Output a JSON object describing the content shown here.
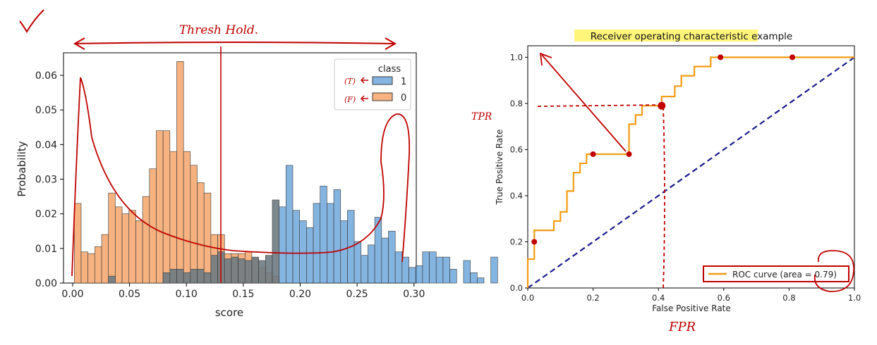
{
  "hist_colors": {
    "class_1": "#5b9bd5",
    "class_0": "#f4a56a",
    "overlap": "#6e7a82",
    "edge": "#3a3a3a"
  },
  "annotation_color": "#c00000",
  "chart_data": [
    {
      "type": "histogram",
      "xlabel": "score",
      "ylabel": "Probability",
      "xlim": [
        -0.008,
        0.302
      ],
      "ylim": [
        0,
        0.0665
      ],
      "xticks": [
        0.0,
        0.05,
        0.1,
        0.15,
        0.2,
        0.25,
        0.3
      ],
      "xtick_labels": [
        "0.00",
        "0.05",
        "0.10",
        "0.15",
        "0.20",
        "0.25",
        "0.30"
      ],
      "yticks": [
        0,
        0.01,
        0.02,
        0.03,
        0.04,
        0.05,
        0.06
      ],
      "ytick_labels": [
        "0.00",
        "0.01",
        "0.02",
        "0.03",
        "0.04",
        "0.05",
        "0.06"
      ],
      "legend": {
        "title": "class",
        "entries": [
          "1",
          "0"
        ],
        "placement": "top-right"
      },
      "bin_start": 0.0015,
      "bin_width": 0.006,
      "series": [
        {
          "name": "0",
          "values": [
            0.023,
            0.009,
            0.0085,
            0.0105,
            0.014,
            0.026,
            0.022,
            0.02,
            0.021,
            0.018,
            0.025,
            0.033,
            0.044,
            0.044,
            0.038,
            0.064,
            0.038,
            0.034,
            0.029,
            0.026,
            0.014,
            0.014,
            0.0085,
            0.0085,
            0.0085,
            0.009,
            0.007,
            0.0045,
            0.003,
            0.002,
            0,
            0,
            0,
            0,
            0,
            0,
            0,
            0,
            0,
            0,
            0,
            0,
            0,
            0,
            0,
            0,
            0,
            0
          ]
        },
        {
          "name": "1",
          "values": [
            0,
            0,
            0,
            0,
            0,
            0.002,
            0,
            0,
            0,
            0,
            0,
            0,
            0,
            0.003,
            0.004,
            0.004,
            0.003,
            0.004,
            0.004,
            0.003,
            0.008,
            0.009,
            0.007,
            0.0075,
            0.007,
            0.0065,
            0.0075,
            0.0065,
            0.008,
            0.024,
            0.022,
            0.034,
            0.021,
            0.018,
            0.016,
            0.023,
            0.028,
            0.023,
            0.027,
            0.018,
            0.021,
            0.012,
            0.008,
            0.011,
            0.019,
            0.013,
            0.015,
            0.009,
            0.0075,
            0.0045,
            0.005,
            0.009,
            0.009,
            0.0075,
            0.0075,
            0.004,
            0,
            0.0065,
            0.003,
            0.0015,
            0,
            0.0075
          ]
        }
      ]
    },
    {
      "type": "line",
      "title": "Receiver operating characteristic example",
      "xlabel": "False Positive Rate",
      "ylabel": "True Positive Rate",
      "xlim": [
        0,
        1
      ],
      "ylim": [
        0,
        1.05
      ],
      "xticks": [
        0.0,
        0.2,
        0.4,
        0.6,
        0.8,
        1.0
      ],
      "xtick_labels": [
        "0.0",
        "0.2",
        "0.4",
        "0.6",
        "0.8",
        "1.0"
      ],
      "yticks": [
        0.0,
        0.2,
        0.4,
        0.6,
        0.8,
        1.0
      ],
      "ytick_labels": [
        "0.0",
        "0.2",
        "0.4",
        "0.6",
        "0.8",
        "1.0"
      ],
      "legend": {
        "entries": [
          "ROC curve (area = 0.79)"
        ],
        "placement": "lower-right"
      },
      "series": [
        {
          "name": "ROC curve (area = 0.79)",
          "color": "#f39c12",
          "x": [
            0.0,
            0.0,
            0.02,
            0.02,
            0.08,
            0.08,
            0.1,
            0.1,
            0.12,
            0.12,
            0.14,
            0.14,
            0.16,
            0.16,
            0.18,
            0.18,
            0.2,
            0.2,
            0.31,
            0.31,
            0.33,
            0.33,
            0.35,
            0.35,
            0.37,
            0.37,
            0.41,
            0.41,
            0.45,
            0.45,
            0.47,
            0.47,
            0.51,
            0.51,
            0.56,
            0.56,
            0.59,
            0.59,
            1.0
          ],
          "y": [
            0.0,
            0.125,
            0.125,
            0.25,
            0.25,
            0.29,
            0.29,
            0.33,
            0.33,
            0.42,
            0.42,
            0.5,
            0.5,
            0.54,
            0.54,
            0.58,
            0.58,
            0.58,
            0.58,
            0.71,
            0.71,
            0.75,
            0.75,
            0.79,
            0.79,
            0.79,
            0.79,
            0.83,
            0.83,
            0.875,
            0.875,
            0.92,
            0.92,
            0.96,
            0.96,
            1.0,
            1.0,
            1.0,
            1.0
          ]
        },
        {
          "color": "#1a1a8c",
          "style": "dashed",
          "x": [
            0,
            1
          ],
          "y": [
            0,
            1
          ]
        }
      ],
      "marked_points": {
        "x": [
          0.02,
          0.2,
          0.31,
          0.41,
          0.59,
          0.81
        ],
        "y": [
          0.2,
          0.58,
          0.58,
          0.79,
          1.0,
          1.0
        ]
      }
    }
  ],
  "annotations": {
    "threshold_label": "Thresh Hold.",
    "check_mark": "✓",
    "legend_note_1": "(T)",
    "legend_note_0": "(F)",
    "tpr_label": "TPR",
    "fpr_label": "FPR"
  }
}
